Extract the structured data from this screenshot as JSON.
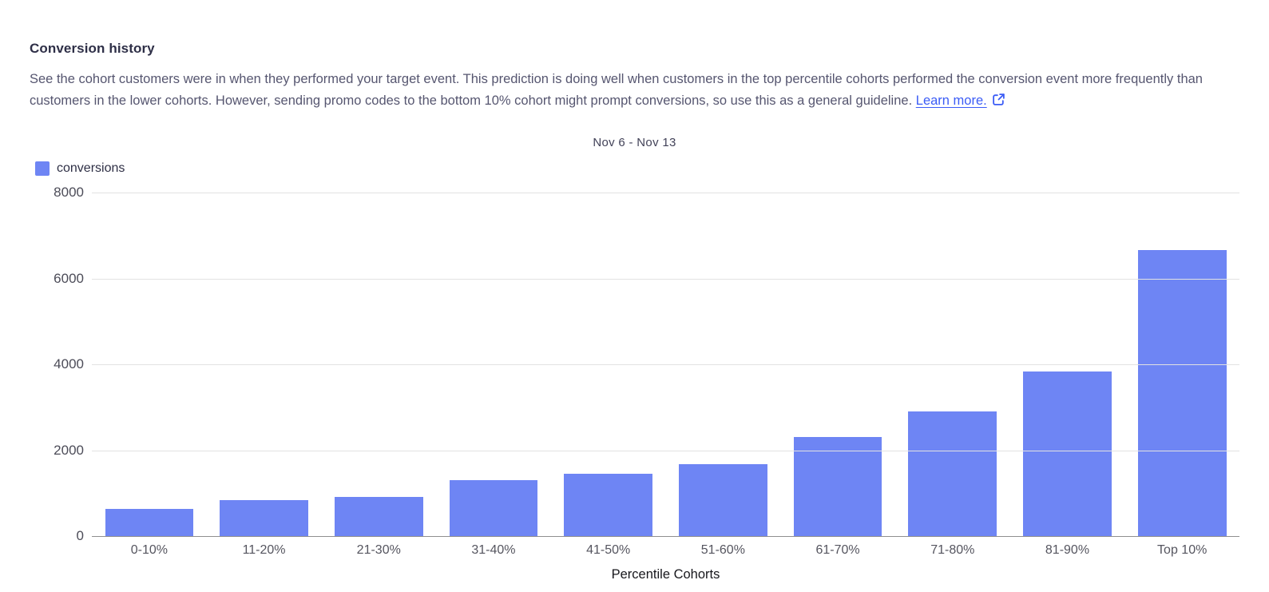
{
  "header": {
    "title": "Conversion history",
    "description": "See the cohort customers were in when they performed your target event. This prediction is doing well when customers in the top percentile cohorts performed the conversion event more frequently than customers in the lower cohorts. However, sending promo codes to the bottom 10% cohort might prompt conversions, so use this as a general guideline.",
    "learn_more_label": "Learn more.",
    "link_color": "#3b5cf6"
  },
  "chart_data": {
    "type": "bar",
    "title": "Nov 6 - Nov 13",
    "legend": [
      {
        "name": "conversions",
        "color": "#6e85f4"
      }
    ],
    "legend_position": "top-left",
    "categories": [
      "0-10%",
      "11-20%",
      "21-30%",
      "31-40%",
      "41-50%",
      "51-60%",
      "61-70%",
      "71-80%",
      "81-90%",
      "Top 10%"
    ],
    "values": [
      640,
      830,
      910,
      1310,
      1460,
      1680,
      2310,
      2900,
      3840,
      6670
    ],
    "xlabel": "Percentile Cohorts",
    "ylabel": "",
    "ylim": [
      0,
      8000
    ],
    "yticks": [
      0,
      2000,
      4000,
      6000,
      8000
    ],
    "grid": "horizontal",
    "bar_color": "#6e85f4",
    "gridline_color": "#e2e2e2",
    "baseline_color": "#8f8f8f"
  }
}
